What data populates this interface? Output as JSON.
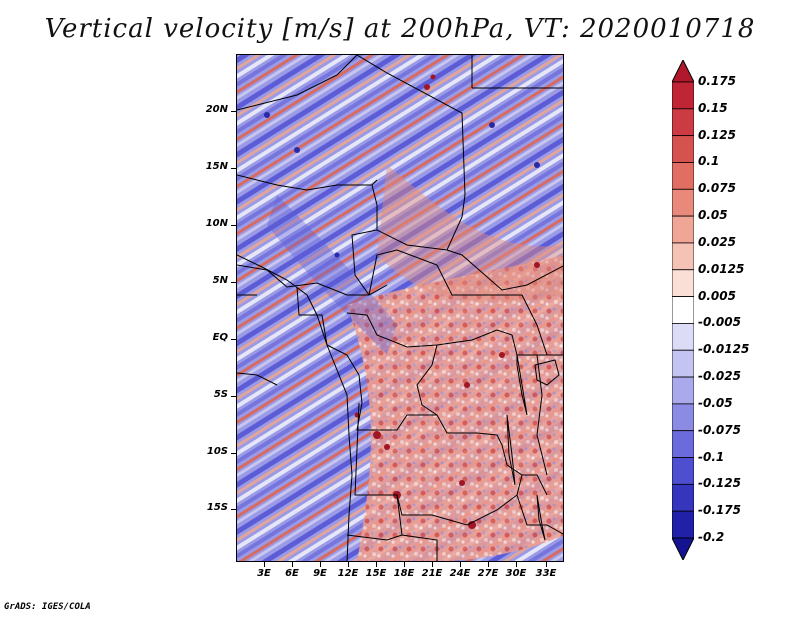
{
  "title": "Vertical velocity [m/s] at 200hPa, VT: 2020010718",
  "credit": "GrADS: IGES/COLA",
  "map": {
    "lat_labels": [
      "20N",
      "15N",
      "10N",
      "5N",
      "EQ",
      "5S",
      "10S",
      "15S"
    ],
    "lon_labels": [
      "3E",
      "6E",
      "9E",
      "12E",
      "15E",
      "18E",
      "21E",
      "24E",
      "27E",
      "30E",
      "33E"
    ]
  },
  "colorbar": {
    "labels": [
      "0.175",
      "0.15",
      "0.125",
      "0.1",
      "0.075",
      "0.05",
      "0.025",
      "0.0125",
      "0.005",
      "-0.005",
      "-0.0125",
      "-0.025",
      "-0.05",
      "-0.075",
      "-0.1",
      "-0.125",
      "-0.175",
      "-0.2"
    ],
    "colors": [
      "#b2182b",
      "#c02535",
      "#cc3a43",
      "#d6524f",
      "#e06e63",
      "#e9897b",
      "#f0a697",
      "#f5c2b6",
      "#fadfd6",
      "#ffffff",
      "#dcdcf6",
      "#c4c4f2",
      "#a9a9ec",
      "#8b8be4",
      "#6b6bdc",
      "#4e4ed0",
      "#3535bd",
      "#2020a8",
      "#141492"
    ]
  },
  "colors": {
    "red": "#d6524f",
    "blue": "#6b6bdc",
    "border": "#000000"
  }
}
